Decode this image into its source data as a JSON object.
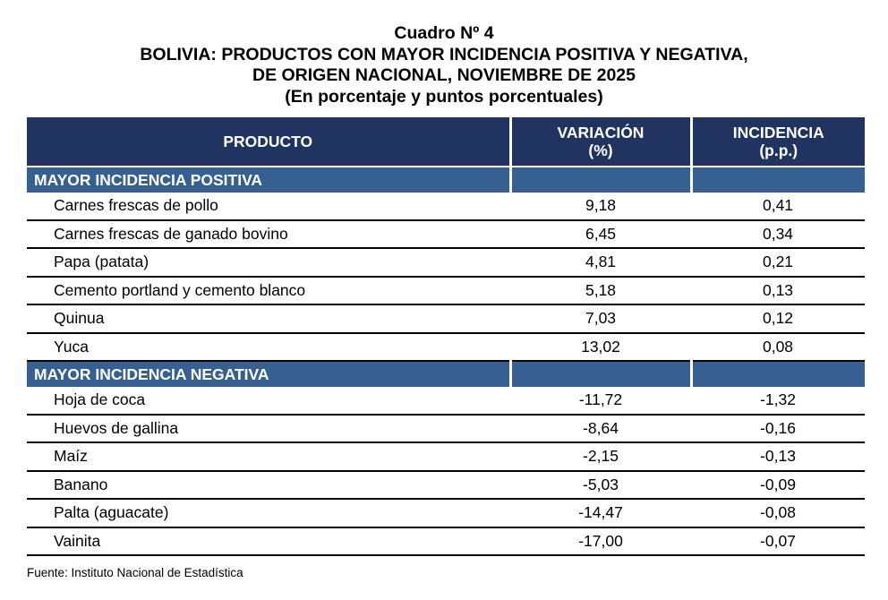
{
  "title": {
    "line1": "Cuadro Nº 4",
    "line2": "BOLIVIA: PRODUCTOS CON MAYOR INCIDENCIA POSITIVA Y NEGATIVA,",
    "line3": "DE ORIGEN NACIONAL, NOVIEMBRE DE 2025",
    "line4": "(En porcentaje y puntos porcentuales)"
  },
  "headers": {
    "producto": "PRODUCTO",
    "variacion1": "VARIACIÓN",
    "variacion2": "(%)",
    "incidencia1": "INCIDENCIA",
    "incidencia2": "(p.p.)"
  },
  "sections": [
    {
      "label": "MAYOR INCIDENCIA POSITIVA",
      "rows": [
        {
          "producto": "Carnes frescas de pollo",
          "variacion": "9,18",
          "incidencia": "0,41"
        },
        {
          "producto": "Carnes frescas de ganado bovino",
          "variacion": "6,45",
          "incidencia": "0,34"
        },
        {
          "producto": "Papa (patata)",
          "variacion": "4,81",
          "incidencia": "0,21"
        },
        {
          "producto": "Cemento portland y cemento blanco",
          "variacion": "5,18",
          "incidencia": "0,13"
        },
        {
          "producto": "Quinua",
          "variacion": "7,03",
          "incidencia": "0,12"
        },
        {
          "producto": "Yuca",
          "variacion": "13,02",
          "incidencia": "0,08"
        }
      ]
    },
    {
      "label": "MAYOR INCIDENCIA NEGATIVA",
      "rows": [
        {
          "producto": "Hoja de coca",
          "variacion": "-11,72",
          "incidencia": "-1,32"
        },
        {
          "producto": "Huevos de gallina",
          "variacion": "-8,64",
          "incidencia": "-0,16"
        },
        {
          "producto": "Maíz",
          "variacion": "-2,15",
          "incidencia": "-0,13"
        },
        {
          "producto": "Banano",
          "variacion": "-5,03",
          "incidencia": "-0,09"
        },
        {
          "producto": "Palta (aguacate)",
          "variacion": "-14,47",
          "incidencia": "-0,08"
        },
        {
          "producto": "Vainita",
          "variacion": "-17,00",
          "incidencia": "-0,07"
        }
      ]
    }
  ],
  "source": "Fuente: Instituto Nacional de Estadística"
}
